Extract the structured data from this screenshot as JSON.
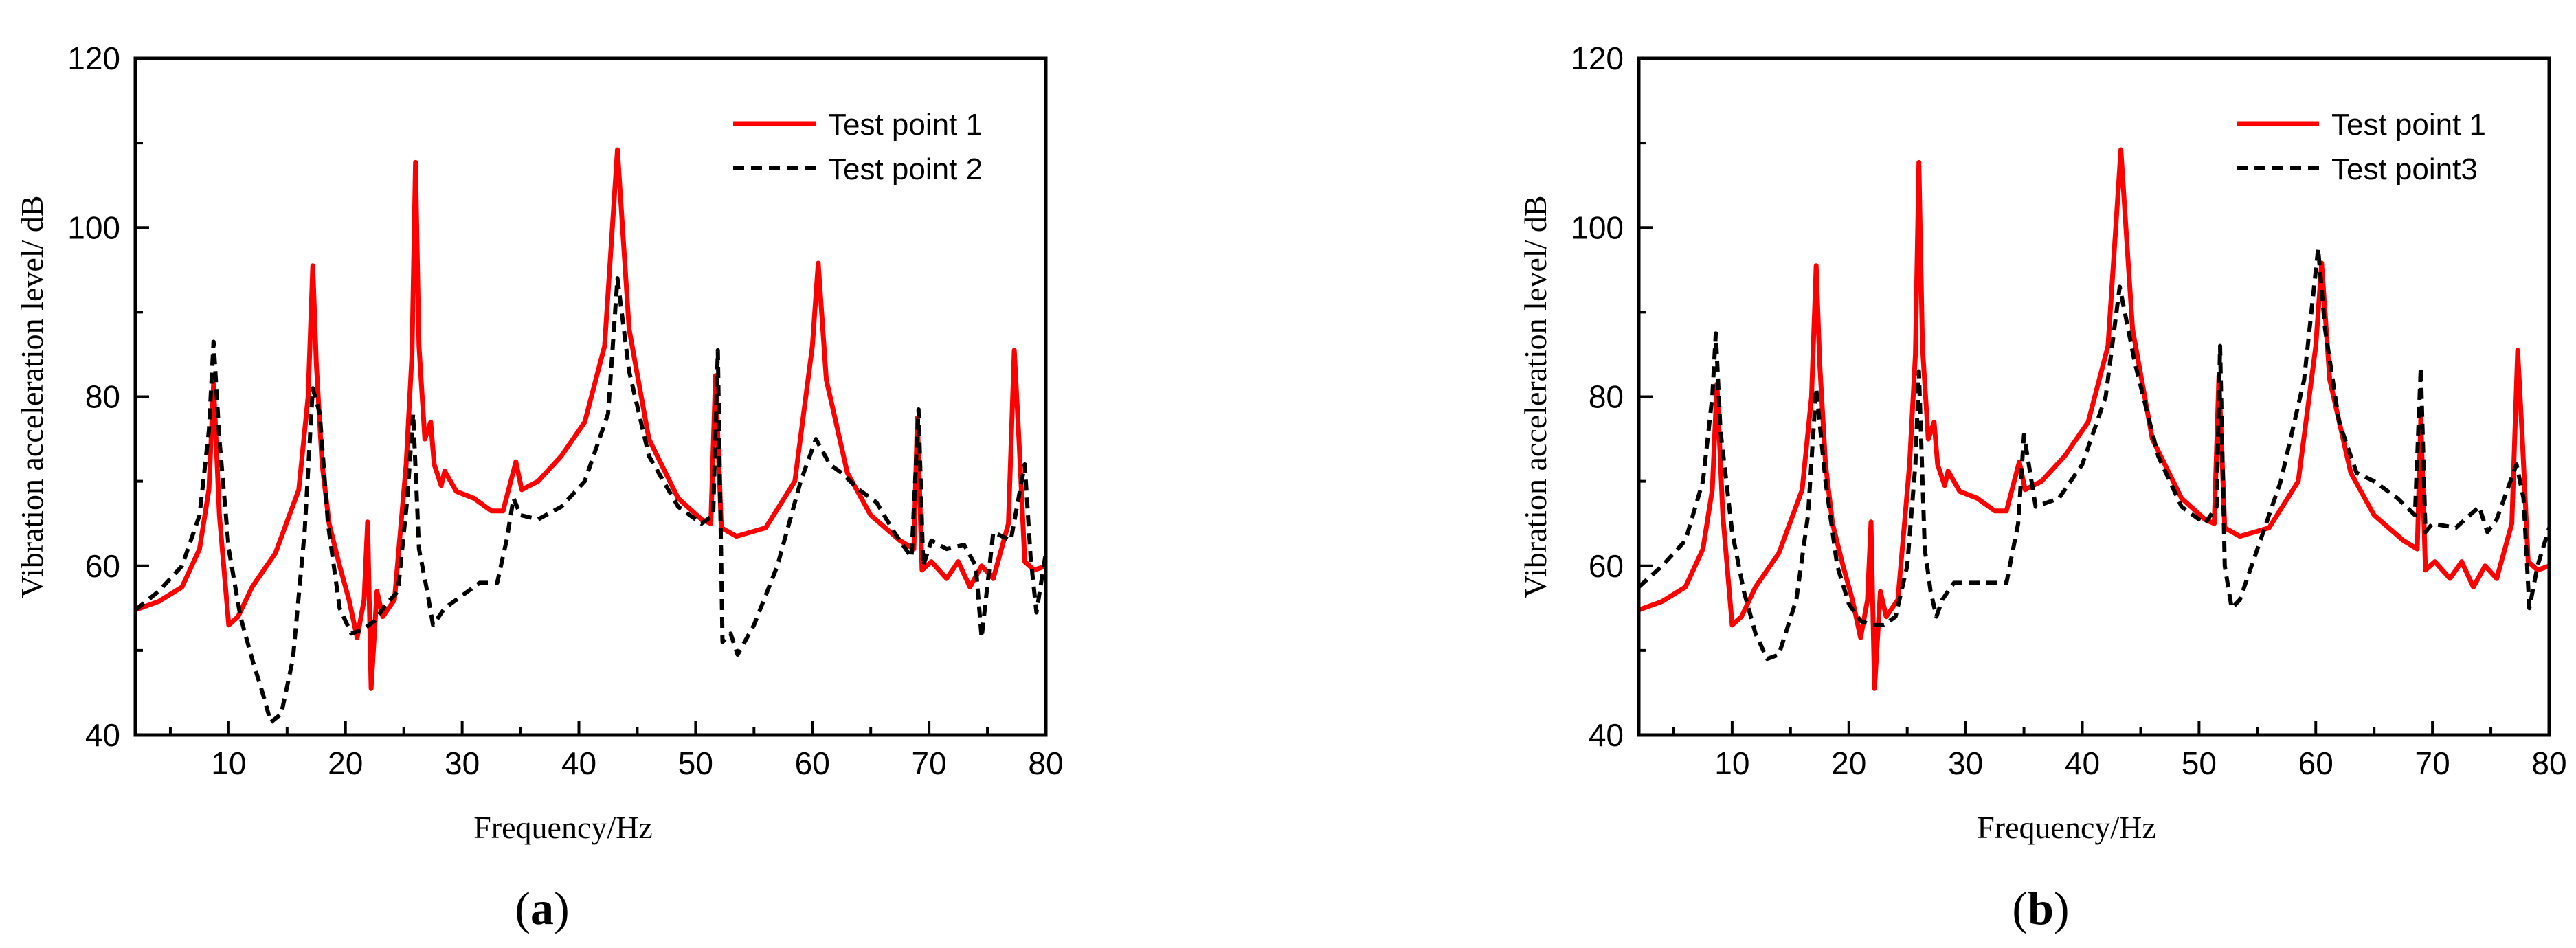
{
  "chart_data": [
    {
      "type": "line",
      "panel_label": "(a)",
      "panel_letter": "a",
      "xlabel": "Frequency/Hz",
      "ylabel": "Vibration acceleration level/ dB",
      "xlim": [
        2,
        80
      ],
      "ylim": [
        40,
        120
      ],
      "xticks": [
        10,
        20,
        30,
        40,
        50,
        60,
        70,
        80
      ],
      "yticks": [
        40,
        60,
        80,
        100,
        120
      ],
      "legend_position": "top-right",
      "series": [
        {
          "name": "Test point 1",
          "color": "#ff0000",
          "style": "solid",
          "x": [
            2,
            4,
            6,
            7.5,
            8.3,
            8.7,
            9.2,
            10,
            10.8,
            12,
            14,
            16,
            16.8,
            17.2,
            17.5,
            18,
            18.6,
            19.5,
            20.3,
            21,
            21.6,
            21.9,
            22.2,
            22.7,
            23.2,
            24.2,
            25.2,
            25.7,
            26.0,
            26.3,
            26.8,
            27.3,
            27.6,
            28.2,
            28.5,
            29.5,
            31,
            32.5,
            33.5,
            34.6,
            35.1,
            36.5,
            38.5,
            40.5,
            42.2,
            43.3,
            44.3,
            46,
            48.5,
            50.5,
            51.3,
            51.7,
            52.2,
            53.5,
            56,
            58.5,
            60.0,
            60.5,
            61.2,
            63,
            65,
            67.5,
            68.7,
            69.0,
            69.4,
            70.2,
            71.5,
            72.5,
            73.5,
            74.5,
            75.5,
            76.8,
            77.3,
            77.7,
            78.2,
            79.0,
            80
          ],
          "values": [
            54.8,
            55.8,
            57.5,
            62,
            69,
            81.5,
            66,
            53,
            54,
            57.5,
            61.5,
            69,
            80,
            95.5,
            84,
            72,
            65,
            60,
            56,
            51.5,
            56,
            65.2,
            45.5,
            57,
            54,
            56,
            72,
            85,
            107.7,
            86,
            75,
            77,
            72,
            69.5,
            71.2,
            68.8,
            68,
            66.5,
            66.5,
            72.3,
            69,
            70,
            73,
            77,
            86,
            109.2,
            88,
            75,
            68,
            65.5,
            65,
            82.5,
            64.5,
            63.5,
            64.5,
            70,
            86,
            95.8,
            82,
            71,
            66,
            63,
            62,
            77.5,
            59.5,
            60.5,
            58.5,
            60.5,
            57.5,
            60,
            58.5,
            65,
            85.5,
            75,
            60.5,
            59.5,
            60
          ]
        },
        {
          "name": "Test point 2",
          "color": "#000000",
          "style": "dashed",
          "x": [
            2,
            4,
            6,
            7.5,
            8.3,
            8.7,
            9.2,
            10,
            11,
            12,
            13,
            13.6,
            14.5,
            15.5,
            16.5,
            17.2,
            17.8,
            18.5,
            19.5,
            20.5,
            21.5,
            22.5,
            23.5,
            24.5,
            25.3,
            25.8,
            26.3,
            27.0,
            27.5,
            28.5,
            30,
            31.5,
            33,
            33.8,
            34.4,
            35,
            36.5,
            38.5,
            40.5,
            42.5,
            43.3,
            44.3,
            46,
            48.5,
            50.5,
            51.5,
            51.9,
            52.3,
            53,
            53.6,
            55,
            57,
            59,
            60.3,
            61.5,
            62.5,
            64,
            65.5,
            67,
            68.5,
            69.1,
            69.5,
            70.2,
            71.5,
            73,
            74.0,
            74.5,
            75.5,
            77,
            78.2,
            78.7,
            79.2,
            80
          ],
          "values": [
            54.8,
            57,
            60,
            66,
            76,
            86.5,
            75,
            62,
            54,
            49,
            44.5,
            41.5,
            42.5,
            49,
            64,
            81,
            78,
            65,
            55,
            52,
            52.5,
            53.5,
            55.5,
            57,
            68,
            78,
            62,
            57,
            53,
            55,
            56.5,
            58,
            58,
            63,
            68,
            66,
            65.5,
            67,
            70,
            78,
            94,
            83,
            73,
            67,
            65,
            66,
            85.5,
            51,
            52,
            49.5,
            53,
            60,
            70,
            75,
            72,
            71,
            69,
            67.5,
            64,
            61,
            78.5,
            60,
            63,
            62,
            62.5,
            60,
            51.5,
            64,
            63,
            72,
            61,
            54.5,
            61.5
          ]
        }
      ]
    },
    {
      "type": "line",
      "panel_label": "(b)",
      "panel_letter": "b",
      "xlabel": "Frequency/Hz",
      "ylabel": "Vibration acceleration level/ dB",
      "xlim": [
        2,
        80
      ],
      "ylim": [
        40,
        120
      ],
      "xticks": [
        10,
        20,
        30,
        40,
        50,
        60,
        70,
        80
      ],
      "yticks": [
        40,
        60,
        80,
        100,
        120
      ],
      "legend_position": "top-right",
      "series": [
        {
          "name": "Test point 1",
          "color": "#ff0000",
          "style": "solid",
          "x": [
            2,
            4,
            6,
            7.5,
            8.3,
            8.7,
            9.2,
            10,
            10.8,
            12,
            14,
            16,
            16.8,
            17.2,
            17.5,
            18,
            18.6,
            19.5,
            20.3,
            21,
            21.6,
            21.9,
            22.2,
            22.7,
            23.2,
            24.2,
            25.2,
            25.7,
            26.0,
            26.3,
            26.8,
            27.3,
            27.6,
            28.2,
            28.5,
            29.5,
            31,
            32.5,
            33.5,
            34.6,
            35.1,
            36.5,
            38.5,
            40.5,
            42.2,
            43.3,
            44.3,
            46,
            48.5,
            50.5,
            51.3,
            51.7,
            52.2,
            53.5,
            56,
            58.5,
            60.0,
            60.5,
            61.2,
            63,
            65,
            67.5,
            68.7,
            69.0,
            69.4,
            70.2,
            71.5,
            72.5,
            73.5,
            74.5,
            75.5,
            76.8,
            77.3,
            77.7,
            78.2,
            79.0,
            80
          ],
          "values": [
            54.8,
            55.8,
            57.5,
            62,
            69,
            81.5,
            66,
            53,
            54,
            57.5,
            61.5,
            69,
            80,
            95.5,
            84,
            72,
            65,
            60,
            56,
            51.5,
            56,
            65.2,
            45.5,
            57,
            54,
            56,
            72,
            85,
            107.7,
            86,
            75,
            77,
            72,
            69.5,
            71.2,
            68.8,
            68,
            66.5,
            66.5,
            72.3,
            69,
            70,
            73,
            77,
            86,
            109.2,
            88,
            75,
            68,
            65.5,
            65,
            82.5,
            64.5,
            63.5,
            64.5,
            70,
            86,
            95.8,
            82,
            71,
            66,
            63,
            62,
            77.5,
            59.5,
            60.5,
            58.5,
            60.5,
            57.5,
            60,
            58.5,
            65,
            85.5,
            75,
            60.5,
            59.5,
            60
          ]
        },
        {
          "name": "Test point3",
          "color": "#000000",
          "style": "dashed",
          "x": [
            2,
            4,
            6,
            7.5,
            8.3,
            8.6,
            9.0,
            10,
            11,
            12,
            13,
            14,
            15.5,
            16.5,
            17.2,
            18,
            19,
            20,
            21,
            22,
            23,
            24,
            25,
            25.7,
            26.0,
            26.5,
            27.0,
            27.5,
            28,
            29,
            30.5,
            32,
            33.5,
            34.5,
            35.0,
            36,
            38,
            40,
            42,
            43.2,
            44.5,
            46.5,
            48.5,
            50.5,
            51.5,
            51.8,
            52.2,
            52.8,
            53.5,
            55,
            57,
            59,
            60.2,
            60.8,
            62,
            63.5,
            65,
            67,
            68.5,
            69.0,
            69.4,
            70,
            72,
            74,
            74.7,
            75.5,
            77.2,
            77.8,
            78.3,
            79,
            80
          ],
          "values": [
            57.5,
            60,
            63,
            70,
            80,
            87.5,
            76,
            64,
            57,
            52,
            49,
            49.5,
            56,
            66,
            81,
            70,
            60,
            55.5,
            53.5,
            53,
            53,
            54,
            60,
            72,
            83,
            62,
            57,
            54,
            56,
            58,
            58,
            58,
            58,
            65,
            75.5,
            67,
            68,
            72,
            80,
            93,
            84,
            73,
            67,
            65,
            67,
            86,
            60,
            55,
            56,
            62,
            70,
            82,
            97.5,
            88,
            77,
            71,
            70,
            68,
            66,
            83.5,
            64,
            65,
            64.5,
            67,
            64,
            65.5,
            72,
            68,
            55,
            60,
            64.5
          ]
        }
      ]
    }
  ]
}
